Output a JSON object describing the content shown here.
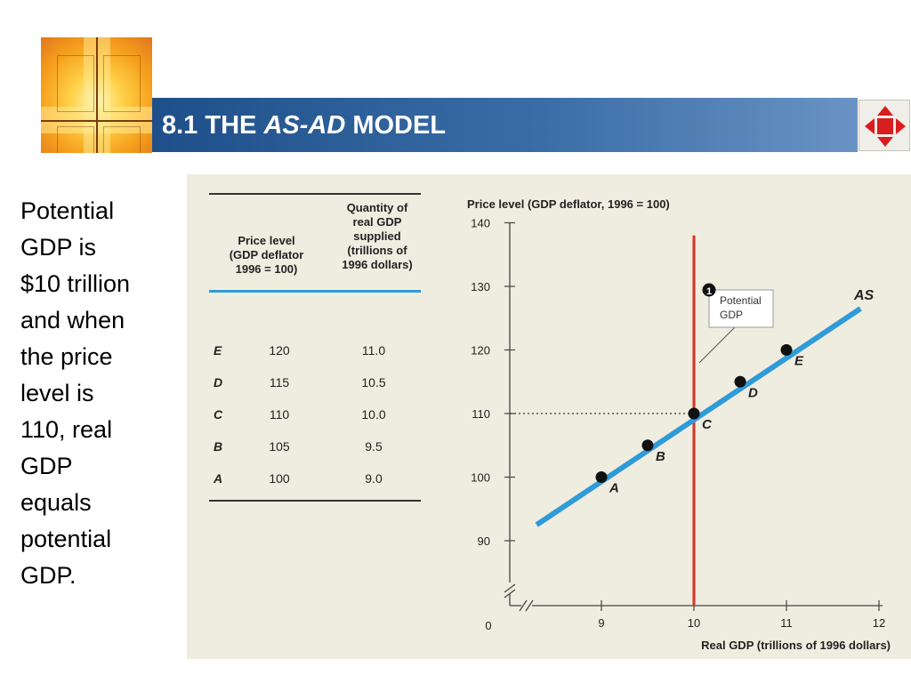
{
  "header": {
    "title_prefix": "8.1 THE ",
    "title_italic": "AS-AD",
    "title_suffix": " MODEL"
  },
  "colors": {
    "banner": "#2b5d98",
    "as_curve": "#2f9bd8",
    "potential_line": "#e03020",
    "panel": "#efeddf"
  },
  "icons": {
    "logo": "sunburst-cross-logo-icon",
    "nav": "four-way-arrow-icon"
  },
  "description": [
    "Potential",
    "GDP is",
    "$10 trillion",
    "and when",
    "the price",
    "level is",
    "110, real",
    "GDP",
    "equals",
    "potential",
    "GDP."
  ],
  "table": {
    "col1_header": [
      "Price level",
      "(GDP deflator",
      "1996 = 100)"
    ],
    "col2_header": [
      "Quantity of",
      "real GDP",
      "supplied",
      "(trillions of",
      "1996 dollars)"
    ],
    "rows": [
      {
        "label": "E",
        "price": "120",
        "quantity": "11.0"
      },
      {
        "label": "D",
        "price": "115",
        "quantity": "10.5"
      },
      {
        "label": "C",
        "price": "110",
        "quantity": "10.0"
      },
      {
        "label": "B",
        "price": "105",
        "quantity": "9.5"
      },
      {
        "label": "A",
        "price": "100",
        "quantity": "9.0"
      }
    ]
  },
  "chart_data": {
    "type": "line",
    "ylabel": "Price level (GDP deflator, 1996 = 100)",
    "xlabel": "Real GDP (trillions of 1996 dollars)",
    "yticks": [
      90,
      100,
      110,
      120,
      130,
      140
    ],
    "xticks": [
      9,
      10,
      11,
      12
    ],
    "origin_label": "0",
    "xlim": [
      8.25,
      12.0
    ],
    "ylim": [
      86,
      140
    ],
    "as_curve": {
      "name": "AS",
      "x": [
        8.3,
        11.8
      ],
      "y": [
        92.5,
        126.5
      ]
    },
    "points": [
      {
        "label": "A",
        "x": 9.0,
        "y": 100
      },
      {
        "label": "B",
        "x": 9.5,
        "y": 105
      },
      {
        "label": "C",
        "x": 10.0,
        "y": 110
      },
      {
        "label": "D",
        "x": 10.5,
        "y": 115
      },
      {
        "label": "E",
        "x": 11.0,
        "y": 120
      }
    ],
    "potential_gdp": {
      "x": 10.0,
      "y_top": 138,
      "annotation_number": "1",
      "annotation_lines": [
        "Potential",
        "GDP"
      ]
    },
    "guide_line": {
      "y": 110,
      "x_from": 8.25,
      "x_to": 10.0
    }
  }
}
